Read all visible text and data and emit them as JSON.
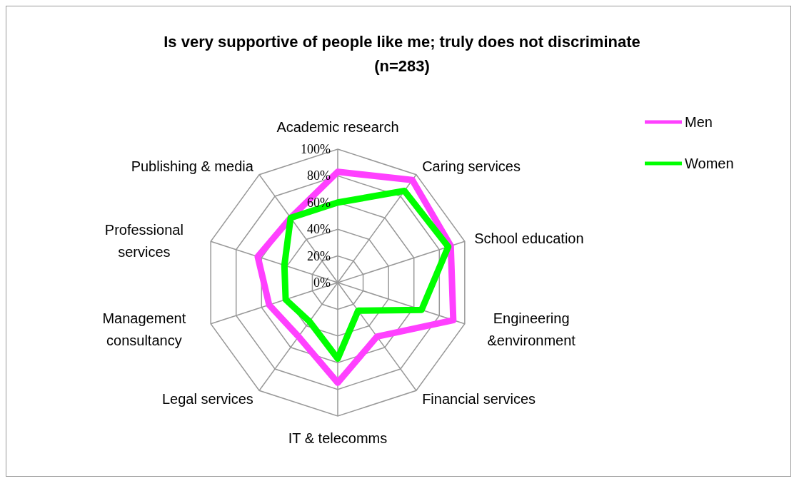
{
  "chart_data": {
    "type": "radar",
    "title": "Is very supportive of people like me; truly does not discriminate (n=283)",
    "categories": [
      "Academic research",
      "Caring services",
      "School education",
      "Engineering &environment",
      "Financial services",
      "IT & telecomms",
      "Legal services",
      "Management consultancy",
      "Professional services",
      "Publishing & media"
    ],
    "series": [
      {
        "name": "Men",
        "color": "#ff40ff",
        "values": [
          83,
          95,
          89,
          91,
          50,
          75,
          50,
          54,
          63,
          60
        ]
      },
      {
        "name": "Women",
        "color": "#00ff00",
        "values": [
          60,
          85,
          87,
          66,
          26,
          57,
          36,
          41,
          42,
          60
        ]
      }
    ],
    "ylim": [
      0,
      100
    ],
    "yticks": [
      {
        "value": 0,
        "label": "0%"
      },
      {
        "value": 20,
        "label": "20%"
      },
      {
        "value": 40,
        "label": "40%"
      },
      {
        "value": 60,
        "label": "60%"
      },
      {
        "value": 80,
        "label": "80%"
      },
      {
        "value": 100,
        "label": "100%"
      }
    ],
    "grid": true,
    "legend": "top right",
    "marker": "none"
  }
}
